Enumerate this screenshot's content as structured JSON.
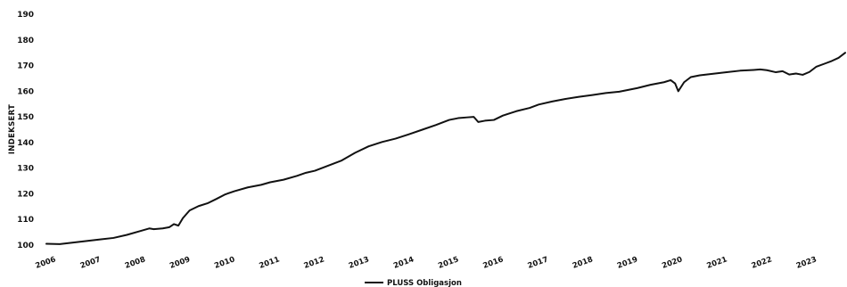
{
  "chart_data": {
    "type": "line",
    "title": "",
    "xlabel": "",
    "ylabel": "INDEKSERT",
    "ylim": [
      100,
      190
    ],
    "yticks": [
      100,
      110,
      120,
      130,
      140,
      150,
      160,
      170,
      180,
      190
    ],
    "xlim": [
      2006.0,
      2023.85
    ],
    "xticks": [
      "2006",
      "2007",
      "2008",
      "2009",
      "2010",
      "2011",
      "2012",
      "2013",
      "2014",
      "2015",
      "2016",
      "2017",
      "2018",
      "2019",
      "2020",
      "2021",
      "2022",
      "2023"
    ],
    "grid": false,
    "legend": "bottom-center",
    "series": [
      {
        "name": "PLUSS Obligasjon",
        "color": "#111111",
        "x": [
          2006.0,
          2006.3,
          2006.6,
          2006.9,
          2007.2,
          2007.5,
          2007.8,
          2008.1,
          2008.3,
          2008.4,
          2008.6,
          2008.75,
          2008.85,
          2008.95,
          2009.05,
          2009.2,
          2009.4,
          2009.6,
          2009.8,
          2010.0,
          2010.2,
          2010.5,
          2010.8,
          2011.0,
          2011.3,
          2011.6,
          2011.8,
          2012.0,
          2012.3,
          2012.6,
          2012.9,
          2013.2,
          2013.5,
          2013.8,
          2014.1,
          2014.4,
          2014.7,
          2015.0,
          2015.2,
          2015.4,
          2015.55,
          2015.65,
          2015.8,
          2016.0,
          2016.2,
          2016.5,
          2016.8,
          2017.0,
          2017.3,
          2017.6,
          2017.9,
          2018.2,
          2018.5,
          2018.8,
          2019.0,
          2019.2,
          2019.5,
          2019.8,
          2019.95,
          2020.05,
          2020.12,
          2020.25,
          2020.4,
          2020.6,
          2020.9,
          2021.2,
          2021.5,
          2021.8,
          2021.95,
          2022.1,
          2022.3,
          2022.45,
          2022.6,
          2022.75,
          2022.9,
          2023.05,
          2023.2,
          2023.4,
          2023.55,
          2023.7,
          2023.85
        ],
        "y": [
          100.5,
          100.4,
          101.0,
          101.6,
          102.2,
          102.8,
          104.0,
          105.5,
          106.5,
          106.2,
          106.5,
          107.0,
          108.2,
          107.6,
          110.5,
          113.5,
          115.2,
          116.3,
          118.0,
          119.8,
          121.0,
          122.5,
          123.5,
          124.5,
          125.5,
          127.0,
          128.2,
          129.0,
          131.0,
          133.0,
          136.0,
          138.5,
          140.2,
          141.5,
          143.2,
          145.0,
          146.8,
          148.8,
          149.5,
          149.8,
          150.0,
          148.0,
          148.5,
          148.8,
          150.5,
          152.2,
          153.5,
          154.8,
          156.0,
          157.0,
          157.8,
          158.5,
          159.3,
          159.8,
          160.5,
          161.2,
          162.5,
          163.5,
          164.3,
          163.0,
          160.0,
          163.5,
          165.5,
          166.2,
          166.8,
          167.4,
          168.0,
          168.3,
          168.5,
          168.2,
          167.4,
          167.8,
          166.5,
          166.9,
          166.4,
          167.5,
          169.5,
          170.8,
          171.8,
          173.0,
          175.0
        ]
      }
    ]
  }
}
